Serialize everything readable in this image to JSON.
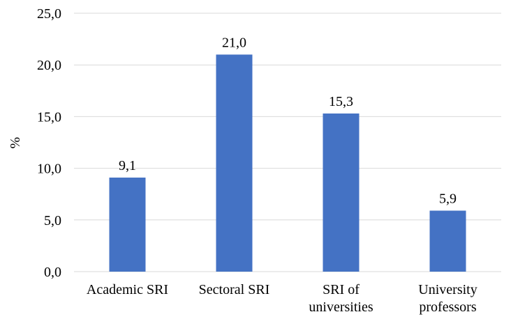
{
  "chart_data": {
    "type": "bar",
    "categories": [
      [
        "Academic SRI"
      ],
      [
        "Sectoral SRI"
      ],
      [
        "SRI of",
        "universities"
      ],
      [
        "University",
        "professors"
      ]
    ],
    "values": [
      9.1,
      21.0,
      15.3,
      5.9
    ],
    "value_labels": [
      "9,1",
      "21,0",
      "15,3",
      "5,9"
    ],
    "ylabel": "%",
    "ylim": [
      0,
      25
    ],
    "yticks": [
      0,
      5,
      10,
      15,
      20,
      25
    ],
    "ytick_labels": [
      "0,0",
      "5,0",
      "10,0",
      "15,0",
      "20,0",
      "25,0"
    ],
    "bar_color": "#4472c4",
    "grid": true,
    "legend": "none"
  }
}
